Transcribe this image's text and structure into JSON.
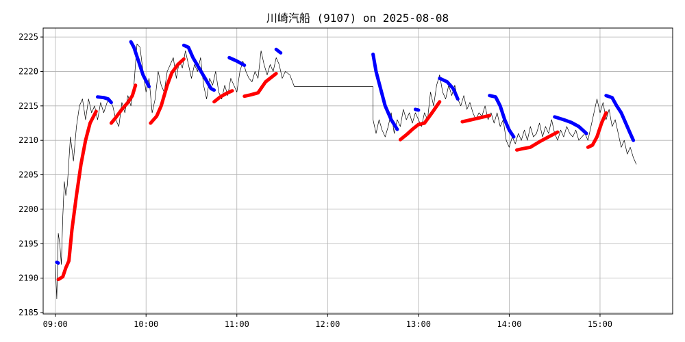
{
  "chart_data": {
    "type": "line",
    "title": "川崎汽船 (9107) on 2025-08-08",
    "xlabel": "",
    "ylabel": "",
    "x_ticks": [
      "09:00",
      "10:00",
      "11:00",
      "12:00",
      "13:00",
      "14:00",
      "15:00"
    ],
    "y_ticks": [
      2185,
      2190,
      2195,
      2200,
      2205,
      2210,
      2215,
      2220,
      2225
    ],
    "xlim": [
      "08:52",
      "15:48"
    ],
    "ylim": [
      2184.8,
      2226.3
    ],
    "grid": true,
    "colors": {
      "price": "#000000",
      "up": "#ff0000",
      "down": "#0000ff",
      "grid": "#b0b0b0"
    },
    "price": [
      [
        "09:00",
        2192.0
      ],
      [
        "09:01",
        2187.0
      ],
      [
        "09:02",
        2196.5
      ],
      [
        "09:03",
        2195.0
      ],
      [
        "09:04",
        2192.0
      ],
      [
        "09:05",
        2199.0
      ],
      [
        "09:06",
        2204.0
      ],
      [
        "09:07",
        2202.0
      ],
      [
        "09:08",
        2203.5
      ],
      [
        "09:10",
        2210.5
      ],
      [
        "09:12",
        2207.0
      ],
      [
        "09:14",
        2212.0
      ],
      [
        "09:16",
        2215.0
      ],
      [
        "09:18",
        2216.0
      ],
      [
        "09:20",
        2213.0
      ],
      [
        "09:22",
        2216.0
      ],
      [
        "09:24",
        2214.0
      ],
      [
        "09:26",
        2215.0
      ],
      [
        "09:28",
        2213.0
      ],
      [
        "09:30",
        2215.5
      ],
      [
        "09:32",
        2214.0
      ],
      [
        "09:35",
        2216.0
      ],
      [
        "09:38",
        2215.0
      ],
      [
        "09:40",
        2213.0
      ],
      [
        "09:42",
        2212.0
      ],
      [
        "09:44",
        2215.5
      ],
      [
        "09:46",
        2214.0
      ],
      [
        "09:48",
        2216.5
      ],
      [
        "09:50",
        2215.0
      ],
      [
        "09:52",
        2218.0
      ],
      [
        "09:54",
        2224.0
      ],
      [
        "09:56",
        2223.5
      ],
      [
        "09:58",
        2220.0
      ],
      [
        "10:00",
        2217.0
      ],
      [
        "10:02",
        2219.0
      ],
      [
        "10:04",
        2214.0
      ],
      [
        "10:06",
        2216.0
      ],
      [
        "10:08",
        2220.0
      ],
      [
        "10:10",
        2218.0
      ],
      [
        "10:12",
        2217.0
      ],
      [
        "10:14",
        2220.0
      ],
      [
        "10:16",
        2221.0
      ],
      [
        "10:18",
        2222.0
      ],
      [
        "10:20",
        2219.0
      ],
      [
        "10:22",
        2221.5
      ],
      [
        "10:24",
        2220.5
      ],
      [
        "10:26",
        2223.0
      ],
      [
        "10:28",
        2221.0
      ],
      [
        "10:30",
        2219.0
      ],
      [
        "10:32",
        2221.0
      ],
      [
        "10:34",
        2220.0
      ],
      [
        "10:36",
        2222.0
      ],
      [
        "10:38",
        2218.0
      ],
      [
        "10:40",
        2216.0
      ],
      [
        "10:42",
        2219.0
      ],
      [
        "10:44",
        2218.0
      ],
      [
        "10:46",
        2220.0
      ],
      [
        "10:48",
        2217.0
      ],
      [
        "10:50",
        2216.0
      ],
      [
        "10:52",
        2218.0
      ],
      [
        "10:54",
        2216.5
      ],
      [
        "10:56",
        2219.0
      ],
      [
        "10:58",
        2218.0
      ],
      [
        "11:00",
        2217.0
      ],
      [
        "11:02",
        2220.0
      ],
      [
        "11:04",
        2221.5
      ],
      [
        "11:06",
        2220.0
      ],
      [
        "11:08",
        2219.0
      ],
      [
        "11:10",
        2218.5
      ],
      [
        "11:12",
        2220.0
      ],
      [
        "11:14",
        2219.0
      ],
      [
        "11:16",
        2223.0
      ],
      [
        "11:18",
        2221.0
      ],
      [
        "11:20",
        2219.5
      ],
      [
        "11:22",
        2221.0
      ],
      [
        "11:24",
        2220.0
      ],
      [
        "11:26",
        2222.0
      ],
      [
        "11:28",
        2221.0
      ],
      [
        "11:30",
        2219.0
      ],
      [
        "11:32",
        2220.0
      ],
      [
        "11:35",
        2219.5
      ],
      [
        "11:38",
        2217.8
      ],
      [
        "12:30",
        2217.8
      ],
      [
        "12:30",
        2213.0
      ],
      [
        "12:32",
        2211.0
      ],
      [
        "12:34",
        2213.0
      ],
      [
        "12:36",
        2211.5
      ],
      [
        "12:38",
        2210.5
      ],
      [
        "12:40",
        2212.0
      ],
      [
        "12:42",
        2214.0
      ],
      [
        "12:44",
        2211.0
      ],
      [
        "12:46",
        2213.0
      ],
      [
        "12:48",
        2212.0
      ],
      [
        "12:50",
        2214.5
      ],
      [
        "12:52",
        2213.0
      ],
      [
        "12:54",
        2214.0
      ],
      [
        "12:56",
        2212.5
      ],
      [
        "12:58",
        2214.0
      ],
      [
        "13:00",
        2213.0
      ],
      [
        "13:02",
        2212.0
      ],
      [
        "13:04",
        2214.0
      ],
      [
        "13:06",
        2213.0
      ],
      [
        "13:08",
        2217.0
      ],
      [
        "13:10",
        2215.0
      ],
      [
        "13:12",
        2218.0
      ],
      [
        "13:14",
        2219.5
      ],
      [
        "13:16",
        2217.0
      ],
      [
        "13:18",
        2216.0
      ],
      [
        "13:20",
        2218.0
      ],
      [
        "13:22",
        2216.5
      ],
      [
        "13:24",
        2218.0
      ],
      [
        "13:26",
        2216.0
      ],
      [
        "13:28",
        2215.0
      ],
      [
        "13:30",
        2216.5
      ],
      [
        "13:32",
        2214.5
      ],
      [
        "13:34",
        2215.5
      ],
      [
        "13:36",
        2214.0
      ],
      [
        "13:38",
        2213.0
      ],
      [
        "13:40",
        2214.0
      ],
      [
        "13:42",
        2213.5
      ],
      [
        "13:44",
        2215.0
      ],
      [
        "13:46",
        2213.0
      ],
      [
        "13:48",
        2214.0
      ],
      [
        "13:50",
        2212.5
      ],
      [
        "13:52",
        2214.0
      ],
      [
        "13:54",
        2212.0
      ],
      [
        "13:56",
        2213.0
      ],
      [
        "13:58",
        2210.0
      ],
      [
        "14:00",
        2209.0
      ],
      [
        "14:02",
        2210.5
      ],
      [
        "14:04",
        2209.5
      ],
      [
        "14:06",
        2211.0
      ],
      [
        "14:08",
        2210.0
      ],
      [
        "14:10",
        2211.5
      ],
      [
        "14:12",
        2210.0
      ],
      [
        "14:14",
        2212.0
      ],
      [
        "14:16",
        2210.5
      ],
      [
        "14:18",
        2211.0
      ],
      [
        "14:20",
        2212.5
      ],
      [
        "14:22",
        2210.5
      ],
      [
        "14:24",
        2212.0
      ],
      [
        "14:26",
        2211.0
      ],
      [
        "14:28",
        2213.0
      ],
      [
        "14:30",
        2211.0
      ],
      [
        "14:32",
        2210.0
      ],
      [
        "14:34",
        2211.5
      ],
      [
        "14:36",
        2210.5
      ],
      [
        "14:38",
        2212.0
      ],
      [
        "14:40",
        2211.0
      ],
      [
        "14:42",
        2210.5
      ],
      [
        "14:44",
        2211.5
      ],
      [
        "14:46",
        2210.0
      ],
      [
        "14:48",
        2210.5
      ],
      [
        "14:50",
        2211.0
      ],
      [
        "14:52",
        2210.0
      ],
      [
        "14:54",
        2212.0
      ],
      [
        "14:56",
        2214.0
      ],
      [
        "14:58",
        2216.0
      ],
      [
        "15:00",
        2214.0
      ],
      [
        "15:02",
        2215.5
      ],
      [
        "15:04",
        2213.0
      ],
      [
        "15:06",
        2214.5
      ],
      [
        "15:08",
        2212.0
      ],
      [
        "15:10",
        2213.0
      ],
      [
        "15:12",
        2211.0
      ],
      [
        "15:14",
        2209.0
      ],
      [
        "15:16",
        2210.0
      ],
      [
        "15:18",
        2208.0
      ],
      [
        "15:20",
        2209.0
      ],
      [
        "15:22",
        2207.5
      ],
      [
        "15:24",
        2206.5
      ]
    ],
    "up_segments": [
      [
        [
          "09:02",
          2189.8
        ],
        [
          "09:05",
          2190.2
        ],
        [
          "09:07",
          2191.5
        ],
        [
          "09:09",
          2192.5
        ],
        [
          "09:11",
          2197.0
        ],
        [
          "09:14",
          2202.0
        ],
        [
          "09:17",
          2206.5
        ],
        [
          "09:20",
          2210.0
        ],
        [
          "09:23",
          2212.5
        ],
        [
          "09:27",
          2214.2
        ]
      ],
      [
        [
          "09:37",
          2212.5
        ],
        [
          "09:40",
          2213.3
        ],
        [
          "09:44",
          2214.5
        ],
        [
          "09:48",
          2215.5
        ],
        [
          "09:51",
          2216.5
        ],
        [
          "09:53",
          2218.0
        ]
      ],
      [
        [
          "10:03",
          2212.5
        ],
        [
          "10:07",
          2213.5
        ],
        [
          "10:10",
          2215.0
        ],
        [
          "10:14",
          2218.0
        ],
        [
          "10:17",
          2219.8
        ],
        [
          "10:21",
          2221.0
        ],
        [
          "10:25",
          2221.8
        ]
      ],
      [
        [
          "10:45",
          2215.6
        ],
        [
          "10:49",
          2216.3
        ],
        [
          "10:53",
          2216.8
        ],
        [
          "10:57",
          2217.2
        ]
      ],
      [
        [
          "11:05",
          2216.4
        ],
        [
          "11:09",
          2216.6
        ],
        [
          "11:14",
          2216.9
        ],
        [
          "11:19",
          2218.5
        ],
        [
          "11:26",
          2219.7
        ]
      ],
      [
        [
          "12:48",
          2210.1
        ],
        [
          "12:52",
          2210.8
        ],
        [
          "12:56",
          2211.6
        ],
        [
          "13:00",
          2212.3
        ],
        [
          "13:04",
          2212.5
        ],
        [
          "13:09",
          2214.0
        ],
        [
          "13:14",
          2215.6
        ]
      ],
      [
        [
          "13:29",
          2212.7
        ],
        [
          "13:35",
          2213.0
        ],
        [
          "13:41",
          2213.3
        ],
        [
          "13:47",
          2213.6
        ]
      ],
      [
        [
          "14:05",
          2208.6
        ],
        [
          "14:09",
          2208.8
        ],
        [
          "14:14",
          2209.0
        ],
        [
          "14:20",
          2209.8
        ],
        [
          "14:26",
          2210.5
        ],
        [
          "14:32",
          2211.2
        ]
      ],
      [
        [
          "14:52",
          2209.0
        ],
        [
          "14:55",
          2209.3
        ],
        [
          "14:58",
          2210.5
        ],
        [
          "15:01",
          2212.5
        ],
        [
          "15:04",
          2214.0
        ]
      ]
    ],
    "down_segments": [
      [
        [
          "09:01",
          2192.3
        ],
        [
          "09:02",
          2192.2
        ]
      ],
      [
        [
          "09:28",
          2216.3
        ],
        [
          "09:32",
          2216.2
        ],
        [
          "09:35",
          2216.0
        ],
        [
          "09:37",
          2215.5
        ]
      ],
      [
        [
          "09:50",
          2224.3
        ],
        [
          "09:52",
          2223.5
        ],
        [
          "09:55",
          2221.5
        ],
        [
          "09:58",
          2219.5
        ],
        [
          "10:02",
          2217.8
        ]
      ],
      [
        [
          "10:25",
          2223.8
        ],
        [
          "10:28",
          2223.5
        ],
        [
          "10:31",
          2222.0
        ],
        [
          "10:35",
          2220.5
        ],
        [
          "10:39",
          2219.0
        ],
        [
          "10:43",
          2217.5
        ],
        [
          "10:45",
          2217.3
        ]
      ],
      [
        [
          "10:55",
          2222.0
        ],
        [
          "11:00",
          2221.5
        ],
        [
          "11:05",
          2220.9
        ]
      ],
      [
        [
          "11:26",
          2223.2
        ],
        [
          "11:29",
          2222.7
        ]
      ],
      [
        [
          "12:30",
          2222.5
        ],
        [
          "12:32",
          2220.0
        ],
        [
          "12:35",
          2217.5
        ],
        [
          "12:38",
          2215.0
        ],
        [
          "12:42",
          2213.0
        ],
        [
          "12:46",
          2211.6
        ]
      ],
      [
        [
          "12:58",
          2214.5
        ],
        [
          "13:00",
          2214.4
        ]
      ],
      [
        [
          "13:14",
          2219.0
        ],
        [
          "13:19",
          2218.5
        ],
        [
          "13:23",
          2217.5
        ],
        [
          "13:26",
          2216.0
        ]
      ],
      [
        [
          "13:47",
          2216.5
        ],
        [
          "13:51",
          2216.3
        ],
        [
          "13:54",
          2215.0
        ],
        [
          "13:57",
          2213.0
        ],
        [
          "14:00",
          2211.5
        ],
        [
          "14:03",
          2210.5
        ]
      ],
      [
        [
          "14:30",
          2213.4
        ],
        [
          "14:36",
          2213.0
        ],
        [
          "14:41",
          2212.6
        ],
        [
          "14:46",
          2212.0
        ],
        [
          "14:51",
          2211.0
        ]
      ],
      [
        [
          "15:04",
          2216.5
        ],
        [
          "15:08",
          2216.2
        ],
        [
          "15:11",
          2215.0
        ],
        [
          "15:14",
          2214.0
        ],
        [
          "15:17",
          2212.5
        ],
        [
          "15:20",
          2211.0
        ],
        [
          "15:22",
          2210.0
        ]
      ]
    ]
  }
}
